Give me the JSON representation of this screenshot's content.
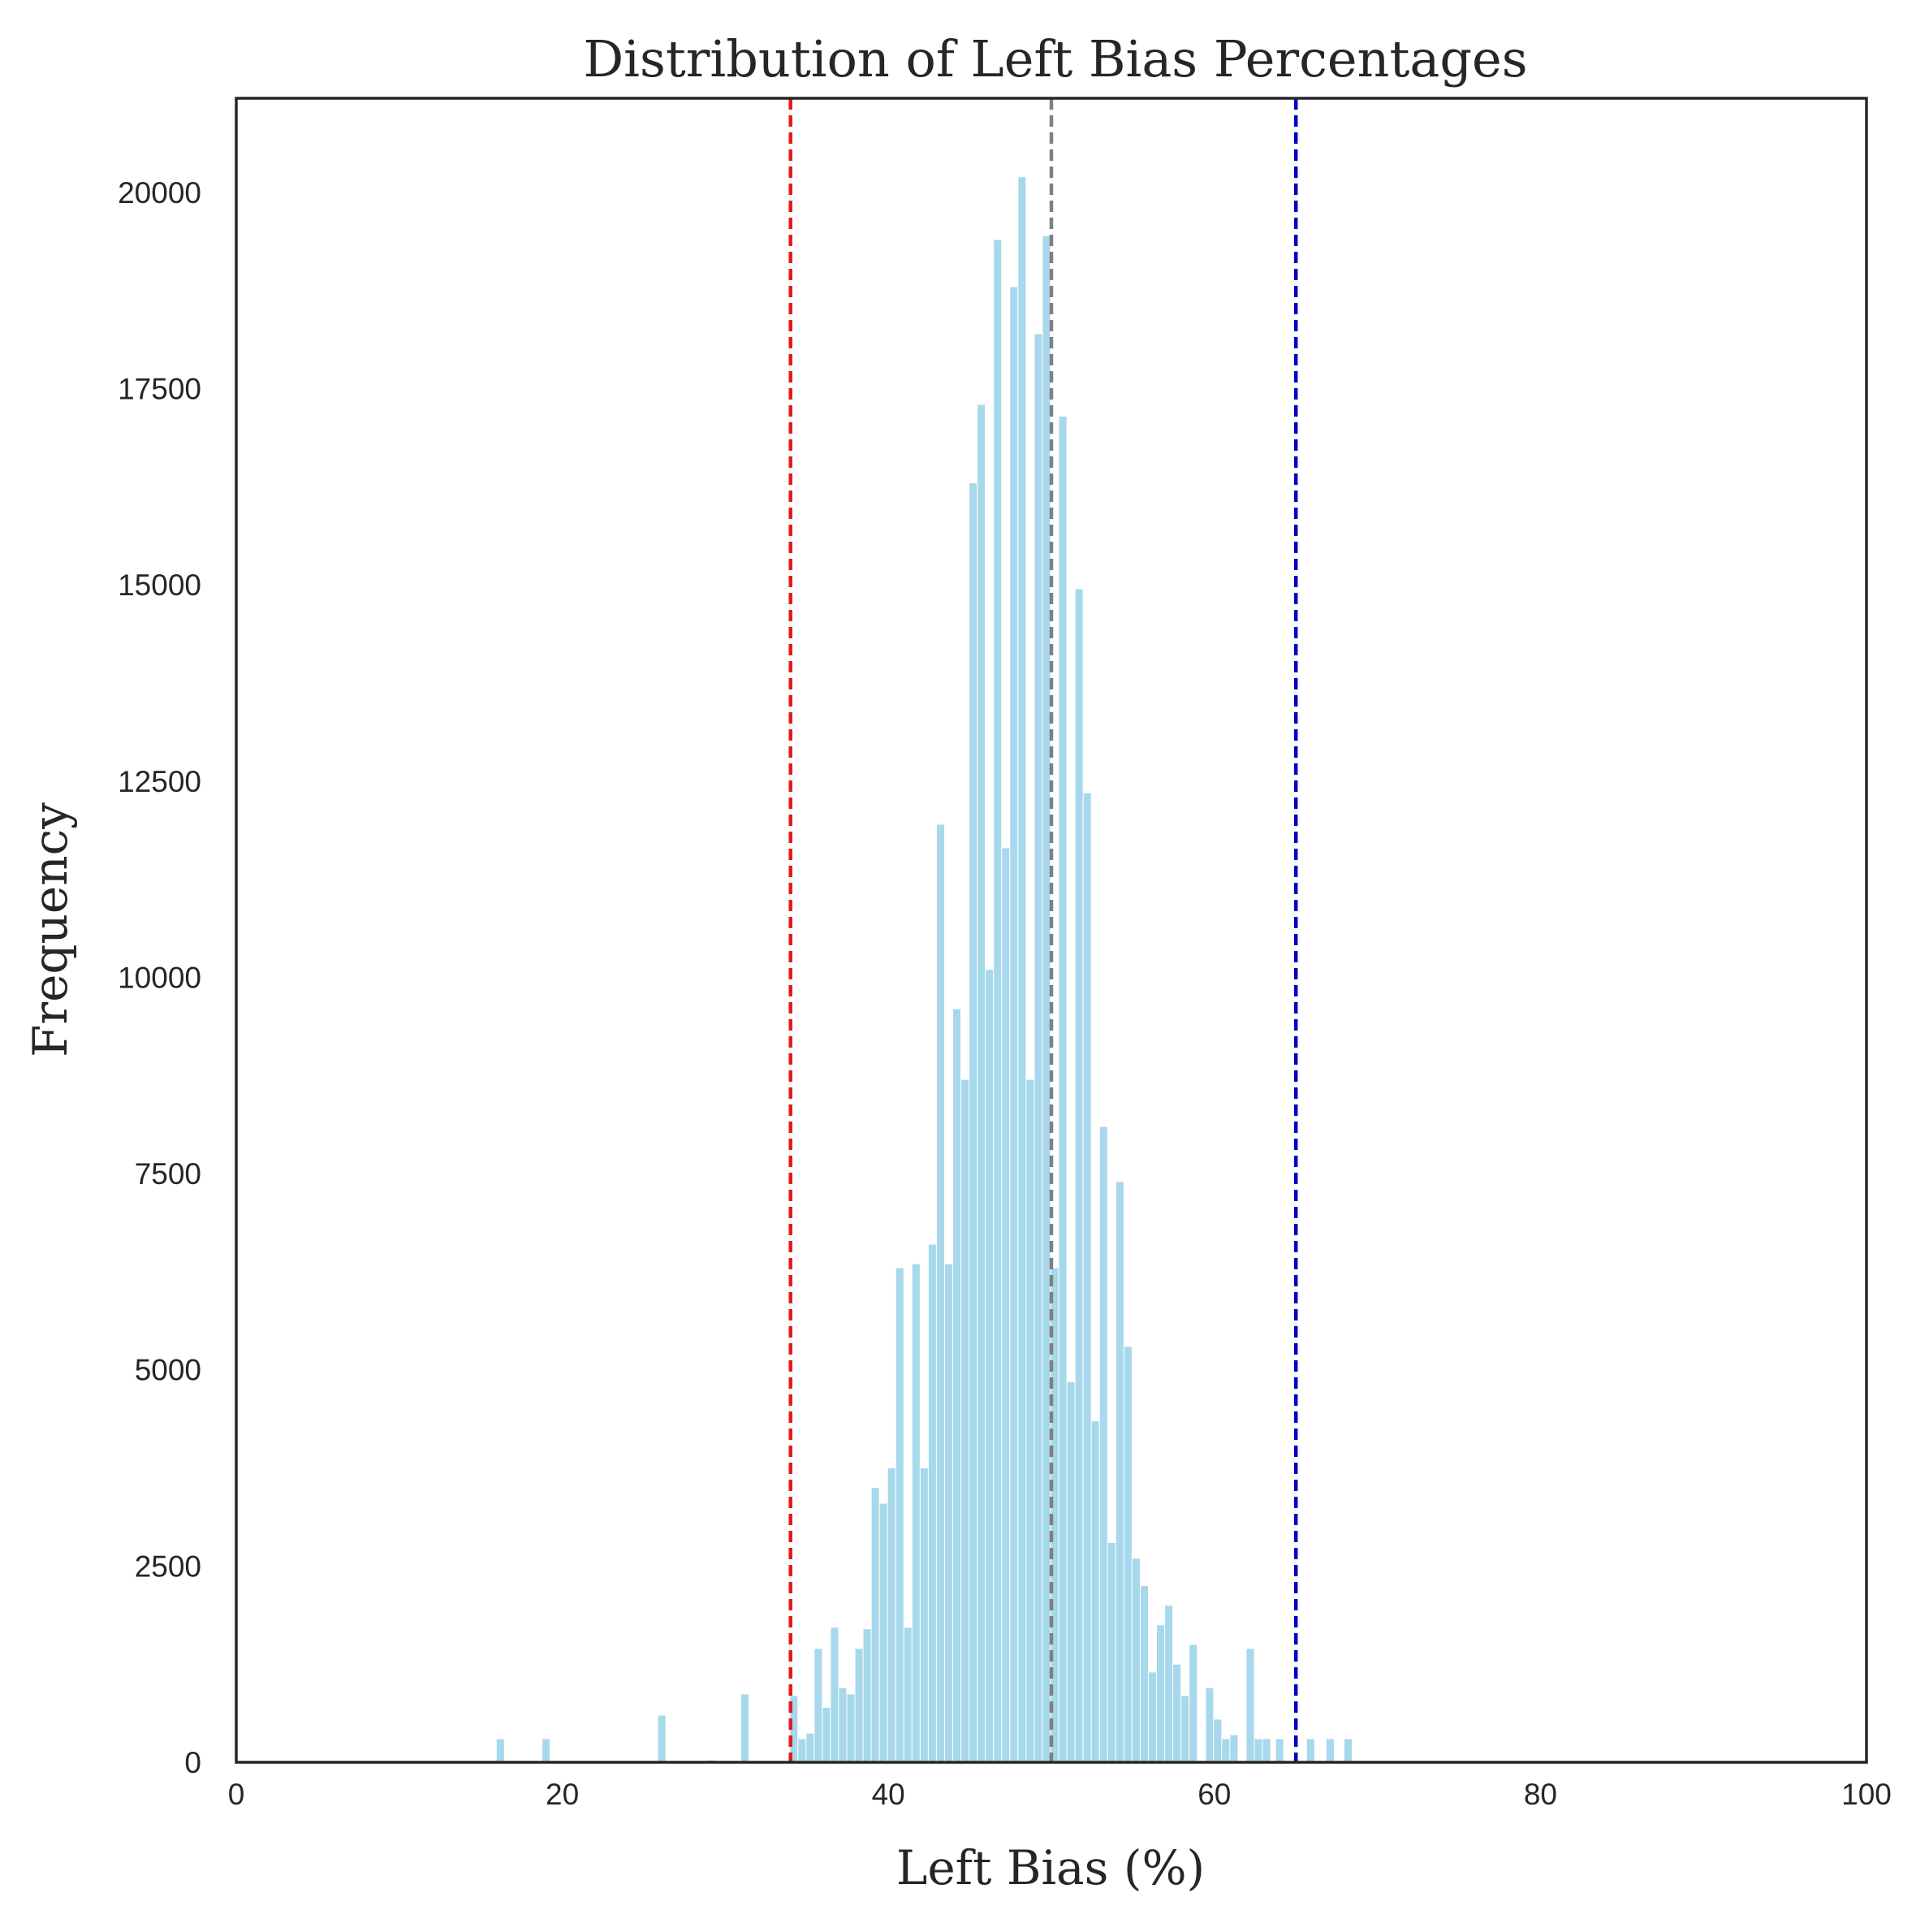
{
  "chart_data": {
    "type": "bar",
    "title": "Distribution of Left Bias Percentages",
    "xlabel": "Left Bias (%)",
    "ylabel": "Frequency",
    "xlim": [
      0,
      100
    ],
    "ylim": [
      0,
      21200
    ],
    "x_ticks": [
      "0",
      "20",
      "40",
      "60",
      "80",
      "100"
    ],
    "y_ticks": [
      "0",
      "2500",
      "5000",
      "7500",
      "10000",
      "12500",
      "15000",
      "17500",
      "20000"
    ],
    "grid": false,
    "bar_color": "#a7d8ec",
    "bin_width": 0.5,
    "bins": [
      {
        "x": 16.2,
        "y": 300
      },
      {
        "x": 19.0,
        "y": 300
      },
      {
        "x": 26.1,
        "y": 600
      },
      {
        "x": 29.1,
        "y": 30
      },
      {
        "x": 31.2,
        "y": 870
      },
      {
        "x": 34.2,
        "y": 850
      },
      {
        "x": 34.7,
        "y": 300
      },
      {
        "x": 35.2,
        "y": 370
      },
      {
        "x": 35.7,
        "y": 1450
      },
      {
        "x": 36.2,
        "y": 700
      },
      {
        "x": 36.7,
        "y": 1720
      },
      {
        "x": 37.2,
        "y": 950
      },
      {
        "x": 37.7,
        "y": 870
      },
      {
        "x": 38.2,
        "y": 1450
      },
      {
        "x": 38.7,
        "y": 1700
      },
      {
        "x": 39.2,
        "y": 3500
      },
      {
        "x": 39.7,
        "y": 3300
      },
      {
        "x": 40.2,
        "y": 3750
      },
      {
        "x": 40.7,
        "y": 6300
      },
      {
        "x": 41.2,
        "y": 1720
      },
      {
        "x": 41.7,
        "y": 6350
      },
      {
        "x": 42.2,
        "y": 3750
      },
      {
        "x": 42.7,
        "y": 6600
      },
      {
        "x": 43.2,
        "y": 11950
      },
      {
        "x": 43.7,
        "y": 6350
      },
      {
        "x": 44.2,
        "y": 9600
      },
      {
        "x": 44.7,
        "y": 8700
      },
      {
        "x": 45.2,
        "y": 16300
      },
      {
        "x": 45.7,
        "y": 17300
      },
      {
        "x": 46.2,
        "y": 10100
      },
      {
        "x": 46.7,
        "y": 19400
      },
      {
        "x": 47.2,
        "y": 11650
      },
      {
        "x": 47.7,
        "y": 18800
      },
      {
        "x": 48.2,
        "y": 20200
      },
      {
        "x": 48.7,
        "y": 8700
      },
      {
        "x": 49.2,
        "y": 18200
      },
      {
        "x": 49.7,
        "y": 19450
      },
      {
        "x": 50.2,
        "y": 6300
      },
      {
        "x": 50.7,
        "y": 17150
      },
      {
        "x": 51.2,
        "y": 4850
      },
      {
        "x": 51.7,
        "y": 14950
      },
      {
        "x": 52.2,
        "y": 12350
      },
      {
        "x": 52.7,
        "y": 4350
      },
      {
        "x": 53.2,
        "y": 8100
      },
      {
        "x": 53.7,
        "y": 2800
      },
      {
        "x": 54.2,
        "y": 7400
      },
      {
        "x": 54.7,
        "y": 5300
      },
      {
        "x": 55.2,
        "y": 2600
      },
      {
        "x": 55.7,
        "y": 2250
      },
      {
        "x": 56.2,
        "y": 1150
      },
      {
        "x": 56.7,
        "y": 1750
      },
      {
        "x": 57.2,
        "y": 2000
      },
      {
        "x": 57.7,
        "y": 1250
      },
      {
        "x": 58.2,
        "y": 850
      },
      {
        "x": 58.7,
        "y": 1500
      },
      {
        "x": 59.2,
        "y": 20
      },
      {
        "x": 59.7,
        "y": 950
      },
      {
        "x": 60.2,
        "y": 550
      },
      {
        "x": 60.7,
        "y": 300
      },
      {
        "x": 61.2,
        "y": 350
      },
      {
        "x": 62.2,
        "y": 1450
      },
      {
        "x": 62.7,
        "y": 300
      },
      {
        "x": 63.2,
        "y": 300
      },
      {
        "x": 64.0,
        "y": 300
      },
      {
        "x": 65.9,
        "y": 300
      },
      {
        "x": 67.1,
        "y": 300
      },
      {
        "x": 68.2,
        "y": 300
      }
    ],
    "reference_lines": [
      {
        "x": 34,
        "color": "#e41a1c",
        "style": "dashed"
      },
      {
        "x": 50,
        "color": "#808080",
        "style": "dashed"
      },
      {
        "x": 65,
        "color": "#0000cd",
        "style": "dashed"
      }
    ]
  }
}
